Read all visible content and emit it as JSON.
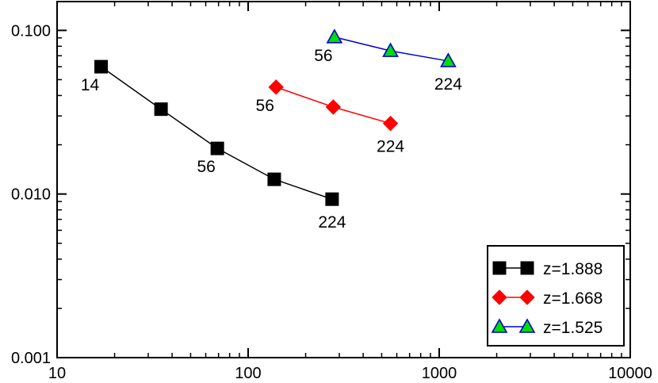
{
  "chart_data": {
    "type": "line",
    "title": "",
    "xlabel": "",
    "ylabel": "",
    "x_scale": "log",
    "y_scale": "log",
    "xlim": [
      10,
      10000
    ],
    "ylim": [
      0.001,
      0.15
    ],
    "x_ticks": [
      {
        "value": 10,
        "label": "10"
      },
      {
        "value": 100,
        "label": "100"
      },
      {
        "value": 1000,
        "label": "1000"
      },
      {
        "value": 10000,
        "label": "10000"
      }
    ],
    "y_ticks": [
      {
        "value": 0.001,
        "label": "0.001"
      },
      {
        "value": 0.01,
        "label": "0.010"
      },
      {
        "value": 0.1,
        "label": "0.100"
      }
    ],
    "grid": false,
    "legend_position": "bottom-right",
    "series": [
      {
        "name": "z=1.888",
        "color": "#000000",
        "marker": "square",
        "marker_fill": "#000000",
        "marker_stroke": "#000000",
        "points": [
          [
            17,
            0.06
          ],
          [
            35,
            0.033
          ],
          [
            69,
            0.019
          ],
          [
            137,
            0.0123
          ],
          [
            275,
            0.0093
          ]
        ],
        "point_labels": [
          {
            "index": 0,
            "text": "14",
            "position": "below-left"
          },
          {
            "index": 2,
            "text": "56",
            "position": "below-left"
          },
          {
            "index": 4,
            "text": "224",
            "position": "below"
          }
        ]
      },
      {
        "name": "z=1.668",
        "color": "#ff0000",
        "marker": "diamond",
        "marker_fill": "#ff0000",
        "marker_stroke": "#ff0000",
        "points": [
          [
            140,
            0.045
          ],
          [
            279,
            0.034
          ],
          [
            556,
            0.027
          ]
        ],
        "point_labels": [
          {
            "index": 0,
            "text": "56",
            "position": "below-left"
          },
          {
            "index": 2,
            "text": "224",
            "position": "below"
          }
        ]
      },
      {
        "name": "z=1.525",
        "color": "#0000cc",
        "marker": "triangle",
        "marker_fill": "#00dd00",
        "marker_stroke": "#0000cc",
        "points": [
          [
            283,
            0.091
          ],
          [
            556,
            0.075
          ],
          [
            1115,
            0.065
          ]
        ],
        "point_labels": [
          {
            "index": 0,
            "text": "56",
            "position": "below-left"
          },
          {
            "index": 2,
            "text": "224",
            "position": "below"
          }
        ]
      }
    ]
  }
}
